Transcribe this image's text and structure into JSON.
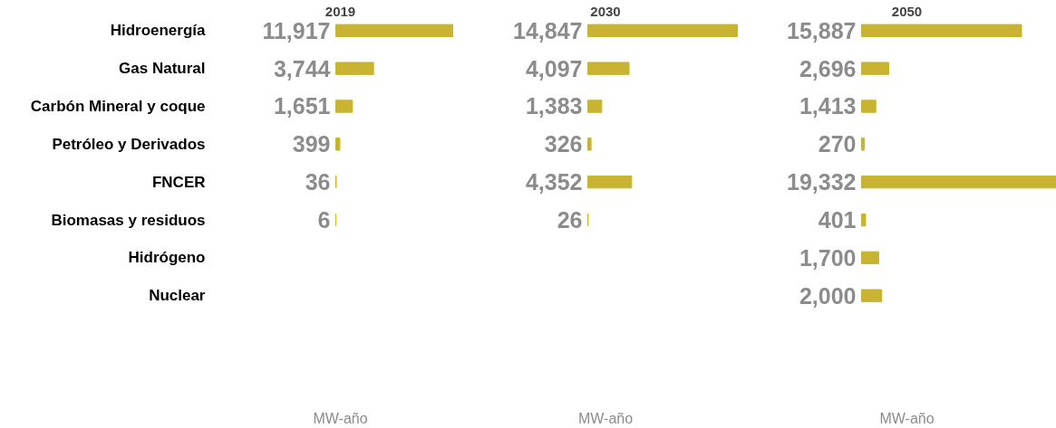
{
  "chart_data": [
    {
      "type": "bar",
      "orientation": "horizontal",
      "title": "2019",
      "xlabel": "MW-año",
      "categories": [
        "Hidroenergía",
        "Gas Natural",
        "Carbón Mineral y coque",
        "Petróleo y Derivados",
        "FNCER",
        "Biomasas y residuos",
        "Hidrógeno",
        "Nuclear"
      ],
      "values": [
        11917,
        3744,
        1651,
        399,
        36,
        6,
        null,
        null
      ],
      "value_labels": [
        "11,917",
        "3,744",
        "1,651",
        "399",
        "36",
        "6",
        null,
        null
      ],
      "color": "#c8b432",
      "tick_labels": "y"
    },
    {
      "type": "bar",
      "orientation": "horizontal",
      "title": "2030",
      "xlabel": "MW-año",
      "values": [
        14847,
        4097,
        1383,
        326,
        4352,
        26,
        null,
        null
      ],
      "value_labels": [
        "14,847",
        "4,097",
        "1,383",
        "326",
        "4,352",
        "26",
        null,
        null
      ],
      "color": "#c8b432",
      "tick_labels": false
    },
    {
      "type": "bar",
      "orientation": "horizontal",
      "title": "2050",
      "xlabel": "MW-año",
      "values": [
        15887,
        2696,
        1413,
        270,
        19332,
        401,
        1700,
        2000
      ],
      "value_labels": [
        "15,887",
        "2,696",
        "1,413",
        "270",
        "19,332",
        "401",
        "1,700",
        "2,000"
      ],
      "color": "#c8b432",
      "tick_labels": false
    }
  ]
}
